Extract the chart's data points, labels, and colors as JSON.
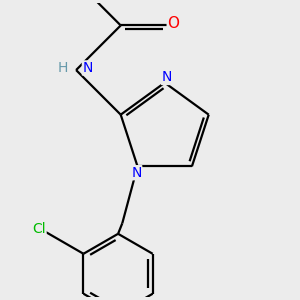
{
  "bg_color": "#ececec",
  "bond_color": "#000000",
  "bond_width": 1.6,
  "atom_colors": {
    "O": "#ff0000",
    "N": "#0000ff",
    "Cl": "#00bb00",
    "H": "#6699aa",
    "C": "#000000"
  },
  "font_size": 10,
  "fig_size": [
    3.0,
    3.0
  ],
  "dpi": 100
}
